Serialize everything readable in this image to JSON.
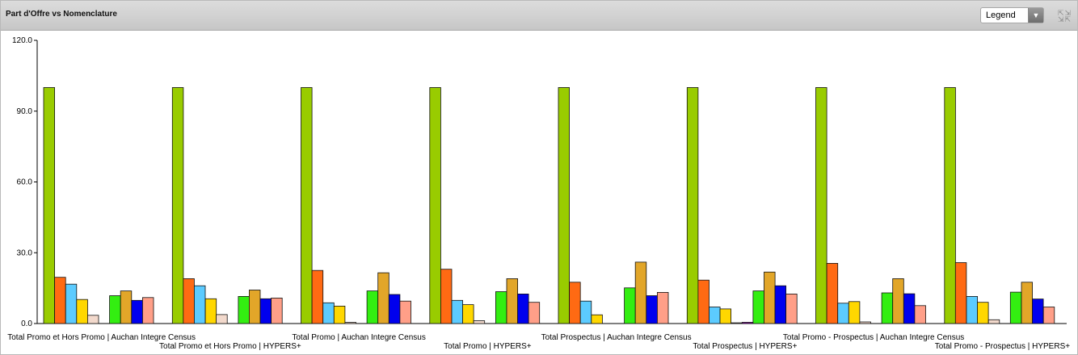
{
  "window": {
    "title": "Part d'Offre vs Nomenclature"
  },
  "controls": {
    "legend_label": "Legend",
    "legend_dropdown_icon": "chevron-down-icon",
    "expand_icon": "expand-arrows-icon"
  },
  "chart_data": {
    "type": "bar",
    "title": "",
    "xlabel": "",
    "ylabel": "",
    "ylim": [
      0,
      120
    ],
    "ytick_labels": [
      "0.0",
      "30.0",
      "60.0",
      "90.0",
      "120.0"
    ],
    "yticks": [
      0,
      30,
      60,
      90,
      120
    ],
    "grid": false,
    "categories": [
      "Total Promo et Hors Promo | Auchan Integre Census",
      "Total Promo et Hors Promo | HYPERS+",
      "Total Promo | Auchan Integre Census",
      "Total Promo | HYPERS+",
      "Total Prospectus | Auchan Integre Census",
      "Total Prospectus | HYPERS+",
      "Total Promo - Prospectus | Auchan Integre Census",
      "Total Promo - Prospectus | HYPERS+"
    ],
    "colors": [
      "#99cc00",
      "#ff6a13",
      "#5ccbff",
      "#ffd700",
      "#f2d9cc",
      "#8800aa",
      "#33ee11",
      "#e2a629",
      "#0000ee",
      "#ff9f88"
    ],
    "series": [
      {
        "values": [
          100,
          100,
          100,
          100,
          100,
          100,
          100,
          100
        ]
      },
      {
        "values": [
          19.6,
          19.0,
          22.5,
          23.0,
          17.5,
          18.4,
          25.5,
          25.8
        ]
      },
      {
        "values": [
          16.7,
          16.0,
          8.8,
          9.8,
          9.5,
          7.0,
          8.6,
          11.5
        ]
      },
      {
        "values": [
          10.2,
          10.5,
          7.4,
          8.0,
          3.7,
          6.2,
          9.3,
          9.0
        ]
      },
      {
        "values": [
          3.5,
          3.8,
          0.5,
          1.2,
          0.0,
          0.3,
          0.7,
          1.6
        ]
      },
      {
        "values": [
          0.0,
          0.0,
          0.0,
          0.0,
          0.0,
          0.5,
          0.0,
          0.0
        ]
      },
      {
        "values": [
          11.8,
          11.5,
          13.8,
          13.5,
          15.1,
          13.8,
          13.0,
          13.3
        ]
      },
      {
        "values": [
          13.8,
          14.2,
          21.5,
          19.0,
          26.0,
          21.8,
          19.0,
          17.5
        ]
      },
      {
        "values": [
          9.8,
          10.5,
          12.3,
          12.5,
          11.8,
          16.0,
          12.6,
          10.4
        ]
      },
      {
        "values": [
          11.0,
          10.8,
          9.5,
          9.0,
          13.2,
          12.5,
          7.6,
          7.0
        ]
      }
    ]
  }
}
